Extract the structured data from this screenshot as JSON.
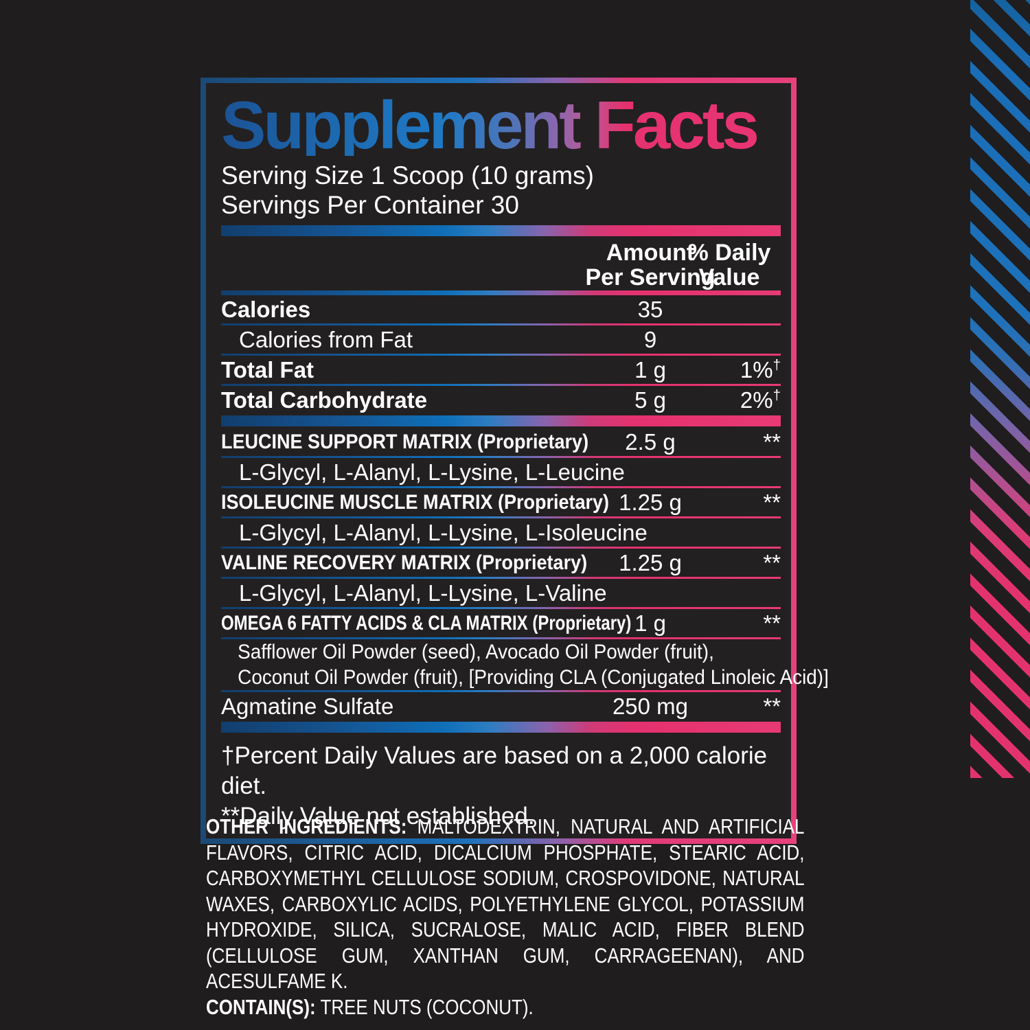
{
  "panel": {
    "title": "Supplement Facts",
    "serving_size": "Serving Size 1 Scoop (10 grams)",
    "servings_per_container": "Servings Per Container 30",
    "header": {
      "amount_line1": "Amount",
      "amount_line2": "Per Serving",
      "dv_line1": "% Daily",
      "dv_line2": "Value"
    },
    "rows": [
      {
        "label": "Calories",
        "amount": "35",
        "dv": "",
        "sup": "",
        "kind": "main",
        "sep": "thin"
      },
      {
        "label": "Calories from Fat",
        "amount": "9",
        "dv": "",
        "sup": "",
        "kind": "sub",
        "sep": "thin"
      },
      {
        "label": "Total Fat",
        "amount": "1 g",
        "dv": "1%",
        "sup": "†",
        "kind": "main",
        "sep": "thin"
      },
      {
        "label": "Total Carbohydrate",
        "amount": "5 g",
        "dv": "2%",
        "sup": "†",
        "kind": "main",
        "sep": "thick"
      },
      {
        "label": "LEUCINE SUPPORT MATRIX (Proprietary)",
        "amount": "2.5 g",
        "dv": "**",
        "sup": "",
        "kind": "matrix",
        "sep": "thin"
      },
      {
        "label": "L-Glycyl, L-Alanyl, L-Lysine, L-Leucine",
        "amount": "",
        "dv": "",
        "sup": "",
        "kind": "sub",
        "sep": "thin"
      },
      {
        "label": "ISOLEUCINE MUSCLE MATRIX (Proprietary)",
        "amount": "1.25 g",
        "dv": "**",
        "sup": "",
        "kind": "matrix",
        "sep": "thin"
      },
      {
        "label": "L-Glycyl, L-Alanyl, L-Lysine, L-Isoleucine",
        "amount": "",
        "dv": "",
        "sup": "",
        "kind": "sub",
        "sep": "thin"
      },
      {
        "label": "VALINE RECOVERY MATRIX (Proprietary)",
        "amount": "1.25 g",
        "dv": "**",
        "sup": "",
        "kind": "matrix",
        "sep": "thin"
      },
      {
        "label": "L-Glycyl, L-Alanyl, L-Lysine, L-Valine",
        "amount": "",
        "dv": "",
        "sup": "",
        "kind": "sub",
        "sep": "thin"
      },
      {
        "label": "OMEGA 6 FATTY ACIDS  & CLA MATRIX (Proprietary)",
        "amount": "1 g",
        "dv": "**",
        "sup": "",
        "kind": "matrix-long",
        "sep": "thin"
      },
      {
        "label": "Safflower Oil Powder (seed), Avocado Oil Powder (fruit),",
        "amount": "",
        "dv": "",
        "sup": "",
        "kind": "sub-cond",
        "sep": "none"
      },
      {
        "label": "Coconut Oil Powder (fruit), [Providing CLA (Conjugated Linoleic Acid)]",
        "amount": "",
        "dv": "",
        "sup": "",
        "kind": "sub-cond",
        "sep": "thin"
      },
      {
        "label": "Agmatine Sulfate",
        "amount": "250 mg",
        "dv": "**",
        "sup": "",
        "kind": "plain",
        "sep": "thick"
      }
    ],
    "footnotes": [
      "†Percent Daily Values are based on a 2,000 calorie diet.",
      "**Daily Value not established."
    ]
  },
  "other_ingredients": {
    "heading": "OTHER INGREDIENTS:",
    "text": "MALTODEXTRIN, NATURAL AND ARTIFICIAL FLAVORS, CITRIC ACID, DICALCIUM PHOSPHATE, STEARIC ACID, CARBOXYMETHYL CELLULOSE SODIUM, CROSPOVIDONE, NATURAL WAXES, CARBOXYLIC ACIDS, POLYETHYLENE GLYCOL, POTASSIUM HYDROXIDE, SILICA, SUCRALOSE, MALIC ACID, FIBER BLEND (CELLULOSE GUM, XANTHAN GUM, CARRAGEENAN), AND ACESULFAME K.",
    "contains_heading": "CONTAIN(S):",
    "contains_text": "TREE NUTS (COCONUT)."
  },
  "colors": {
    "background": "#201d1e",
    "accent_blue": "#1d71bb",
    "accent_purple": "#8a63ad",
    "accent_pink": "#e7316f"
  }
}
